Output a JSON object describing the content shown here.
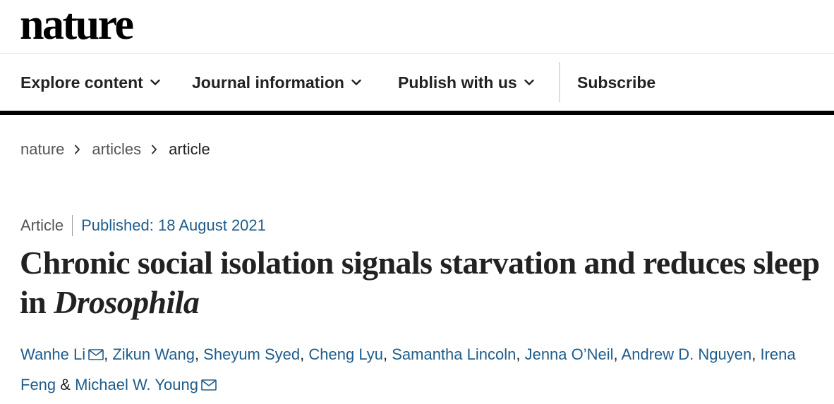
{
  "site": {
    "logo": "nature"
  },
  "nav": {
    "items": [
      {
        "label": "Explore content",
        "icon": "chevron-down-icon"
      },
      {
        "label": "Journal information",
        "icon": "chevron-down-icon"
      },
      {
        "label": "Publish with us",
        "icon": "chevron-down-icon"
      }
    ],
    "subscribe_label": "Subscribe"
  },
  "breadcrumb": [
    "nature",
    "articles",
    "article"
  ],
  "article": {
    "type": "Article",
    "published": "Published: 18 August 2021",
    "title_main": "Chronic social isolation signals starvation and reduces sleep in ",
    "title_italic": "Drosophila",
    "authors": [
      {
        "name": "Wanhe Li",
        "email_icon": true
      },
      {
        "name": "Zikun Wang"
      },
      {
        "name": "Sheyum Syed"
      },
      {
        "name": "Cheng Lyu"
      },
      {
        "name": "Samantha Lincoln"
      },
      {
        "name": "Jenna O’Neil"
      },
      {
        "name": "Andrew D. Nguyen"
      },
      {
        "name": "Irena Feng"
      },
      {
        "name": "Michael W. Young",
        "email_icon": true
      }
    ],
    "author_separator": ", ",
    "author_last_separator": " & "
  },
  "colors": {
    "link": "#1f5c8b",
    "text": "#222222",
    "muted": "#555555"
  }
}
